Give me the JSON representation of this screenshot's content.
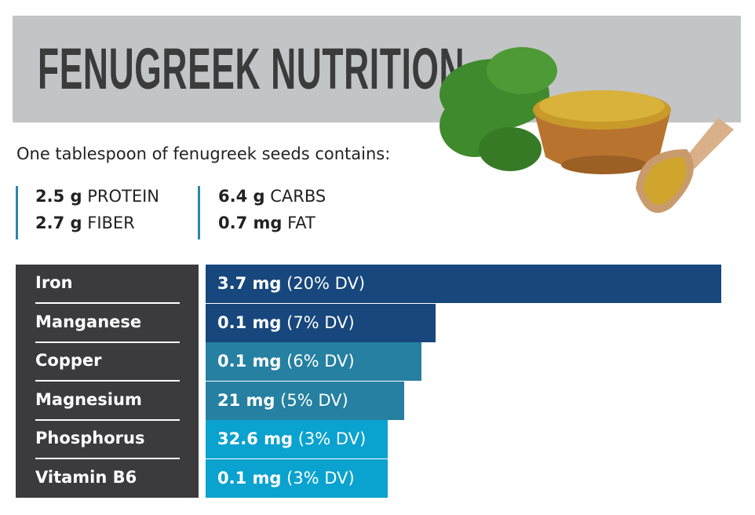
{
  "header": {
    "title": "FENUGREEK NUTRITION"
  },
  "intro": "One tablespoon of fenugreek seeds contains:",
  "macros": [
    {
      "amount": "2.5 g",
      "name": "PROTEIN"
    },
    {
      "amount": "2.7 g",
      "name": "FIBER"
    },
    {
      "amount": "6.4 g",
      "name": "CARBS"
    },
    {
      "amount": "0.7 mg",
      "name": "FAT"
    }
  ],
  "nutrients": [
    {
      "name": "Iron",
      "amount": "3.7 mg",
      "dv": "(20% DV)"
    },
    {
      "name": "Manganese",
      "amount": "0.1 mg",
      "dv": "(7% DV)"
    },
    {
      "name": "Copper",
      "amount": "0.1 mg",
      "dv": "(6% DV)"
    },
    {
      "name": "Magnesium",
      "amount": "21 mg",
      "dv": "(5% DV)"
    },
    {
      "name": "Phosphorus",
      "amount": "32.6 mg",
      "dv": "(3% DV)"
    },
    {
      "name": "Vitamin B6",
      "amount": "0.1 mg",
      "dv": "(3% DV)"
    }
  ]
}
